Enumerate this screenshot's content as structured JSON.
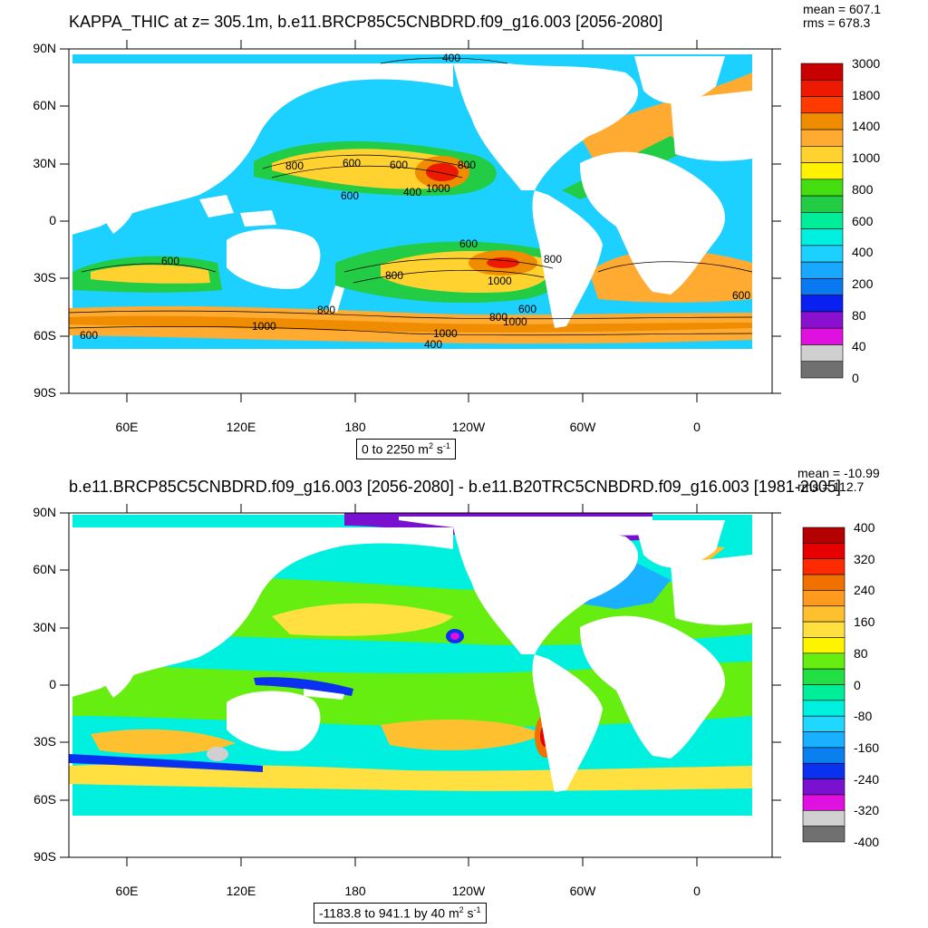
{
  "top_panel": {
    "title": "KAPPA_THIC at z= 305.1m, b.e11.BRCP85C5CNBDRD.f09_g16.003 [2056-2080]",
    "mean": "mean = 607.1",
    "rms": "rms = 678.3",
    "range_main": "0 to 2250 m",
    "range_sup1": "2",
    "range_mid": " s",
    "range_sup2": "-1",
    "colorbar_labels": [
      "3000",
      "1800",
      "1400",
      "1000",
      "800",
      "600",
      "400",
      "200",
      "80",
      "40",
      "0"
    ],
    "colorbar_colors": [
      "#c80000",
      "#ee1a00",
      "#ff3a00",
      "#f08c00",
      "#ffaa30",
      "#ffd230",
      "#fff200",
      "#44dd10",
      "#22cc44",
      "#00ee99",
      "#00f0e0",
      "#1cd0ff",
      "#18a8ff",
      "#0a78f0",
      "#0a20f0",
      "#8a10d0",
      "#e010e0",
      "#d0d0d0",
      "#707070"
    ],
    "contour_labels": [
      "400",
      "800",
      "600",
      "600",
      "800",
      "1000",
      "600",
      "400",
      "600",
      "600",
      "800",
      "800",
      "1000",
      "600",
      "800",
      "1000",
      "600",
      "1000",
      "800",
      "1000",
      "400",
      "600"
    ]
  },
  "bottom_panel": {
    "title": "b.e11.BRCP85C5CNBDRD.f09_g16.003 [2056-2080] - b.e11.B20TRC5CNBDRD.f09_g16.003 [1981-2005]",
    "mean": "mean = -10.99",
    "rms": "rms = 112.7",
    "range_main": "-1183.8 to 941.1 by 40 m",
    "range_sup1": "2",
    "range_mid": " s",
    "range_sup2": "-1",
    "colorbar_labels": [
      "400",
      "320",
      "240",
      "160",
      "80",
      "0",
      "-80",
      "-160",
      "-240",
      "-320",
      "-400"
    ],
    "colorbar_colors": [
      "#b40000",
      "#e60000",
      "#ff2a00",
      "#f07000",
      "#ff9a20",
      "#ffc030",
      "#ffe040",
      "#fff400",
      "#66ee10",
      "#22e044",
      "#00ee99",
      "#00f0e0",
      "#20d8ff",
      "#18b0ff",
      "#0a80f0",
      "#0a30f0",
      "#7a10d0",
      "#e010e0",
      "#d0d0d0",
      "#707070"
    ]
  },
  "axes": {
    "lat_labels": [
      "90N",
      "60N",
      "30N",
      "0",
      "30S",
      "60S",
      "90S"
    ],
    "lon_labels": [
      "60E",
      "120E",
      "180",
      "120W",
      "60W",
      "0"
    ]
  }
}
